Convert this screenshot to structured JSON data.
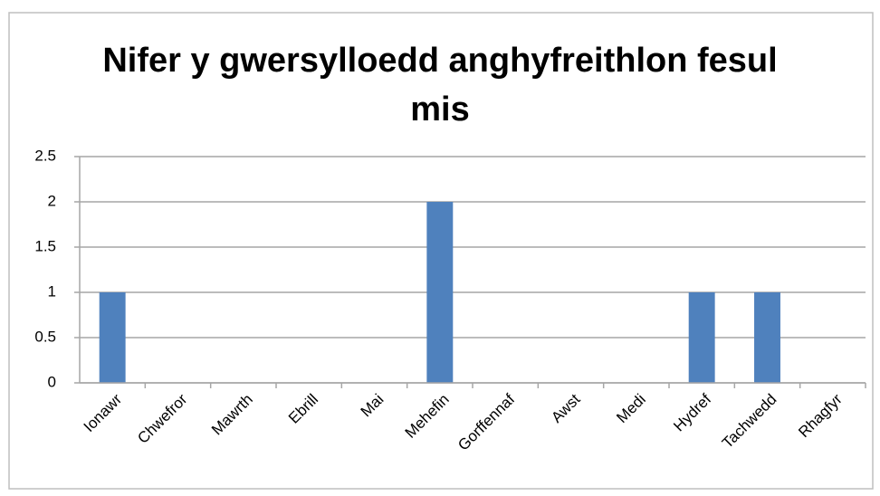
{
  "chart_data": {
    "type": "bar",
    "title": "Nifer y gwersylloedd anghyfreithlon fesul mis",
    "categories": [
      "Ionawr",
      "Chwefror",
      "Mawrth",
      "Ebrill",
      "Mai",
      "Mehefin",
      "Gorffennaf",
      "Awst",
      "Medi",
      "Hydref",
      "Tachwedd",
      "Rhagfyr"
    ],
    "values": [
      1,
      0,
      0,
      0,
      0,
      2,
      0,
      0,
      0,
      1,
      1,
      0
    ],
    "color": "#4f81bd",
    "ylim": [
      0,
      2.5
    ],
    "yticks": [
      0,
      0.5,
      1,
      1.5,
      2,
      2.5
    ],
    "grid": true
  }
}
